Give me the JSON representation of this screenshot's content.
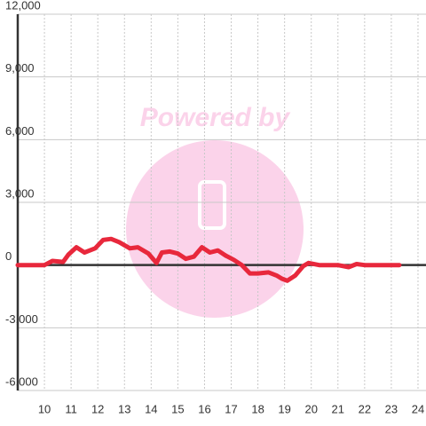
{
  "chart_data": {
    "type": "line",
    "watermark": "Powered by",
    "x": [
      9.0,
      10.0,
      10.3,
      10.7,
      10.9,
      11.2,
      11.5,
      11.9,
      12.2,
      12.5,
      12.8,
      13.2,
      13.5,
      13.9,
      14.2,
      14.4,
      14.7,
      15.0,
      15.3,
      15.6,
      15.9,
      16.2,
      16.5,
      16.8,
      17.1,
      17.4,
      17.7,
      18.0,
      18.4,
      18.7,
      18.9,
      19.1,
      19.4,
      19.7,
      19.9,
      20.3,
      21.0,
      21.4,
      21.7,
      22.0,
      23.3
    ],
    "series": [
      {
        "color": "#e8283c",
        "values": [
          0,
          0,
          200,
          150,
          500,
          850,
          600,
          800,
          1200,
          1250,
          1100,
          800,
          850,
          550,
          100,
          600,
          650,
          550,
          300,
          400,
          850,
          600,
          700,
          450,
          250,
          0,
          -400,
          -400,
          -350,
          -500,
          -650,
          -750,
          -500,
          -50,
          100,
          0,
          0,
          -100,
          50,
          0,
          0
        ]
      }
    ],
    "xlim": [
      9,
      24.3
    ],
    "xticks": [
      10,
      11,
      12,
      13,
      14,
      15,
      16,
      17,
      18,
      19,
      20,
      21,
      22,
      23,
      24
    ],
    "ylim": [
      -6000,
      12000
    ],
    "yticks": [
      {
        "value": -6000,
        "label": "-6,000"
      },
      {
        "value": -3000,
        "label": "-3,000"
      },
      0,
      {
        "value": 3000,
        "label": "3,000"
      },
      {
        "value": 6000,
        "label": "6,000"
      },
      {
        "value": 9000,
        "label": "9,000"
      },
      {
        "value": 12000,
        "label": "12,000"
      }
    ],
    "grid": true
  }
}
